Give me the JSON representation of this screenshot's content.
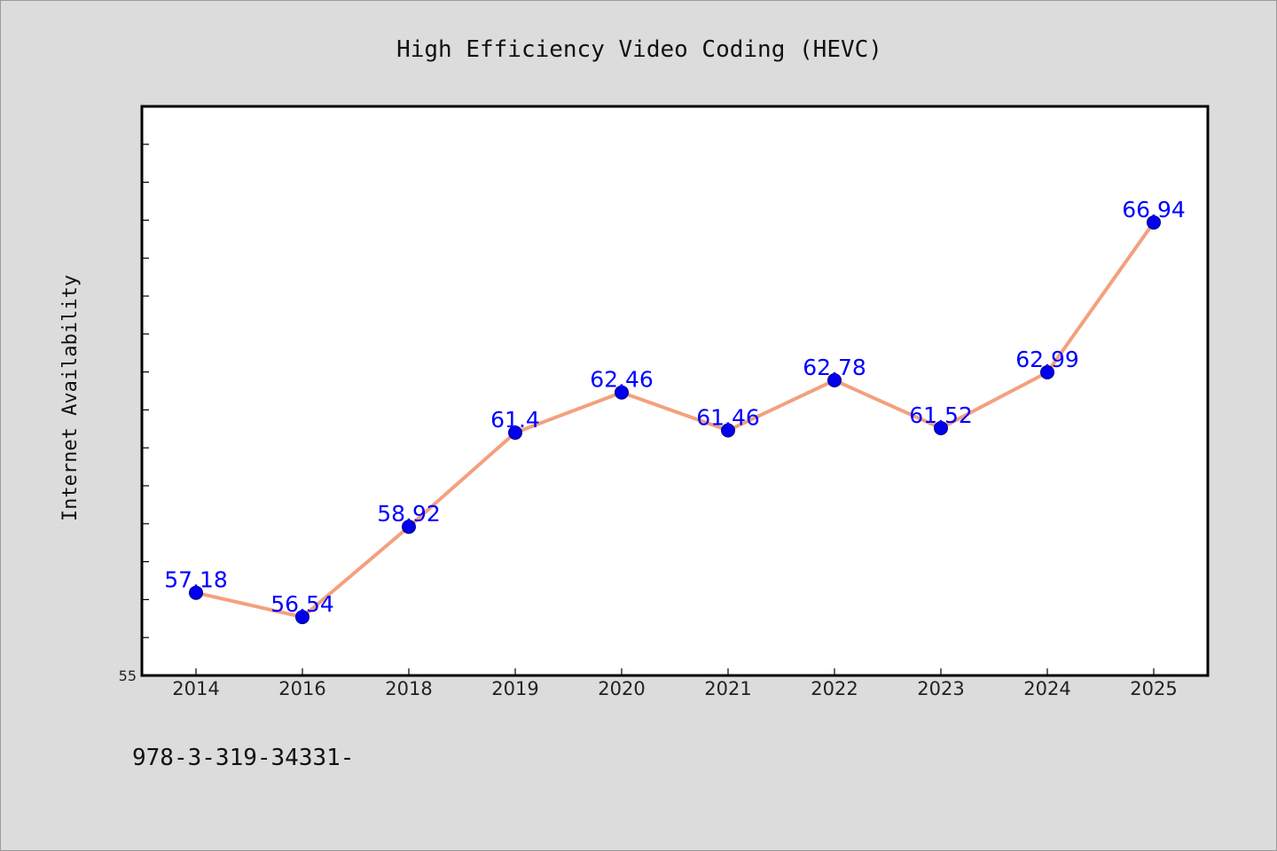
{
  "colors": {
    "background": "#dcdcdc",
    "plot_background": "#ffffff",
    "line": "#f4a07e",
    "marker": "#0000ee",
    "label": "#0000ff",
    "frame": "#000000"
  },
  "footnote": "978-3-319-34331-",
  "chart_data": {
    "type": "line",
    "title": "High Efficiency Video Coding (HEVC)",
    "xlabel": "",
    "ylabel": "Internet Availability",
    "categories": [
      "2014",
      "2016",
      "2018",
      "2019",
      "2020",
      "2021",
      "2022",
      "2023",
      "2024",
      "2025"
    ],
    "series": [
      {
        "values": [
          57.18,
          56.54,
          58.92,
          61.4,
          62.46,
          61.46,
          62.78,
          61.52,
          62.99,
          66.94
        ]
      }
    ],
    "data_labels": [
      "57.18",
      "56.54",
      "58.92",
      "61.4",
      "62.46",
      "61.46",
      "62.78",
      "61.52",
      "62.99",
      "66.94"
    ],
    "ylim": [
      55,
      70
    ],
    "ytick_labels": [
      "55"
    ],
    "grid": false,
    "legend": "none"
  }
}
